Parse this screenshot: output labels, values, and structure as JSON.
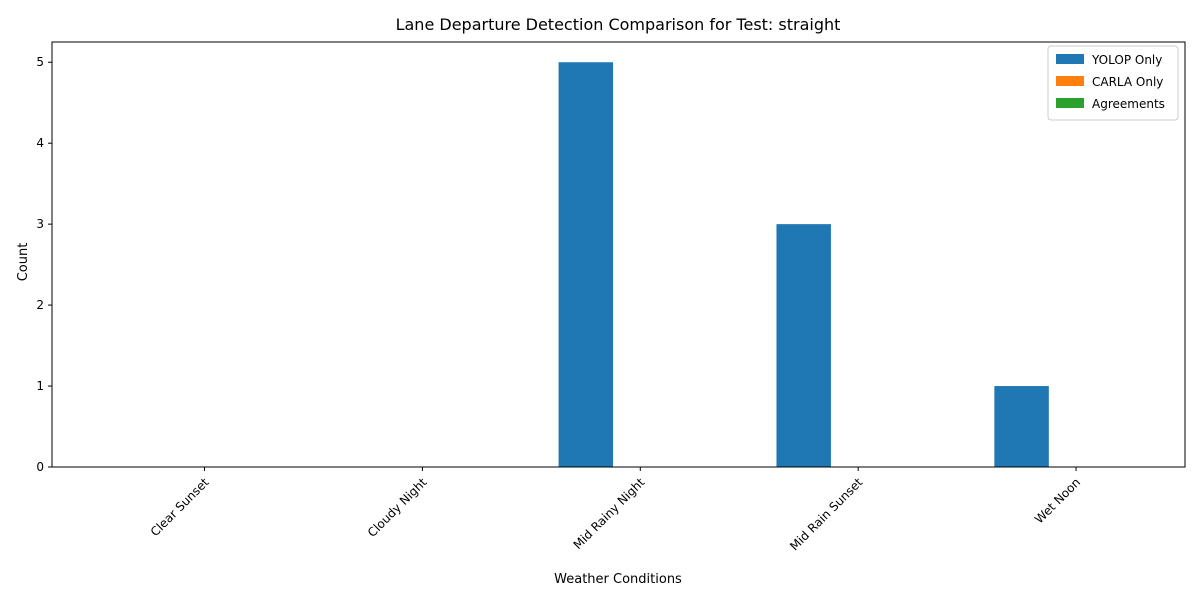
{
  "chart_data": {
    "type": "bar",
    "title": "Lane Departure Detection Comparison for Test: straight",
    "xlabel": "Weather Conditions",
    "ylabel": "Count",
    "categories": [
      "Clear Sunset",
      "Cloudy Night",
      "Mid Rainy Night",
      "Mid Rain Sunset",
      "Wet Noon"
    ],
    "series": [
      {
        "name": "YOLOP Only",
        "values": [
          0,
          0,
          5,
          3,
          1
        ],
        "color": "#1f77b4"
      },
      {
        "name": "CARLA Only",
        "values": [
          0,
          0,
          0,
          0,
          0
        ],
        "color": "#ff7f0e"
      },
      {
        "name": "Agreements",
        "values": [
          0,
          0,
          0,
          0,
          0
        ],
        "color": "#2ca02c"
      }
    ],
    "ylim": [
      0,
      5.25
    ],
    "yticks": [
      0,
      1,
      2,
      3,
      4,
      5
    ],
    "legend_position": "top-right",
    "grid": false
  }
}
